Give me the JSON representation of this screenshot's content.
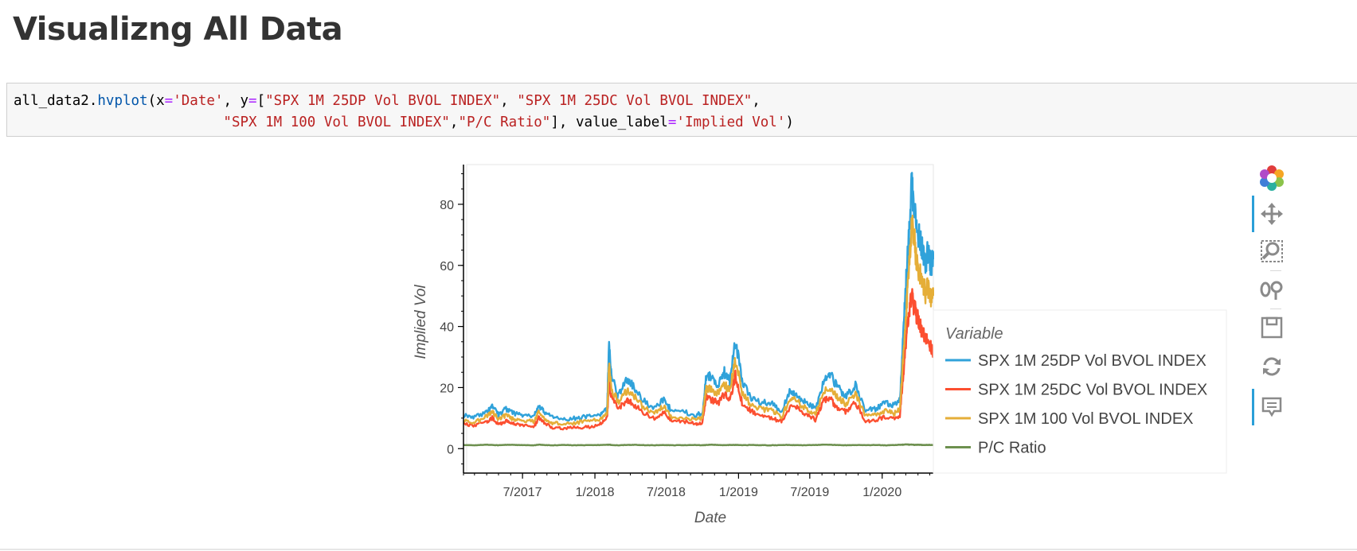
{
  "page": {
    "heading": "Visualizng All Data"
  },
  "code": {
    "line1": [
      {
        "t": "all_data2",
        "c": "var"
      },
      {
        "t": ".",
        "c": "var"
      },
      {
        "t": "hvplot",
        "c": "attr"
      },
      {
        "t": "(x",
        "c": "var"
      },
      {
        "t": "=",
        "c": "op"
      },
      {
        "t": "'Date'",
        "c": "str"
      },
      {
        "t": ", y",
        "c": "var"
      },
      {
        "t": "=",
        "c": "op"
      },
      {
        "t": "[",
        "c": "var"
      },
      {
        "t": "\"SPX 1M 25DP Vol BVOL INDEX\"",
        "c": "str"
      },
      {
        "t": ", ",
        "c": "var"
      },
      {
        "t": "\"SPX 1M 25DC Vol BVOL INDEX\"",
        "c": "str"
      },
      {
        "t": ",",
        "c": "var"
      }
    ],
    "line2_indent": "                         ",
    "line2": [
      {
        "t": "\"SPX 1M 100 Vol BVOL INDEX\"",
        "c": "str"
      },
      {
        "t": ",",
        "c": "var"
      },
      {
        "t": "\"P/C Ratio\"",
        "c": "str"
      },
      {
        "t": "], value_label",
        "c": "var"
      },
      {
        "t": "=",
        "c": "op"
      },
      {
        "t": "'Implied Vol'",
        "c": "str"
      },
      {
        "t": ")",
        "c": "var"
      }
    ]
  },
  "toolbar": {
    "tools": [
      "bokeh-logo-icon",
      "pan-icon",
      "box-zoom-icon",
      "wheel-zoom-icon",
      "save-icon",
      "reset-icon",
      "hover-icon"
    ],
    "active": [
      "pan-icon",
      "hover-icon"
    ]
  },
  "chart_data": {
    "type": "line",
    "xlabel": "Date",
    "ylabel": "Implied Vol",
    "x_range": [
      "2017-02-01",
      "2020-05-10"
    ],
    "ylim": [
      -8,
      93
    ],
    "x_ticks": [
      {
        "date": "2017-07-01",
        "label": "7/2017"
      },
      {
        "date": "2018-01-01",
        "label": "1/2018"
      },
      {
        "date": "2018-07-01",
        "label": "7/2018"
      },
      {
        "date": "2019-01-01",
        "label": "1/2019"
      },
      {
        "date": "2019-07-01",
        "label": "7/2019"
      },
      {
        "date": "2020-01-01",
        "label": "1/2020"
      }
    ],
    "y_ticks": [
      0,
      20,
      40,
      60,
      80
    ],
    "legend": {
      "title": "Variable",
      "position": "right"
    },
    "grid": false,
    "base_dates": [
      "2017-02-01",
      "2017-03-01",
      "2017-04-01",
      "2017-04-15",
      "2017-05-01",
      "2017-05-20",
      "2017-06-10",
      "2017-07-01",
      "2017-08-01",
      "2017-08-11",
      "2017-08-25",
      "2017-09-15",
      "2017-10-15",
      "2017-11-15",
      "2017-12-15",
      "2018-01-15",
      "2018-02-01",
      "2018-02-06",
      "2018-02-12",
      "2018-03-01",
      "2018-03-23",
      "2018-04-06",
      "2018-05-01",
      "2018-06-01",
      "2018-06-25",
      "2018-07-15",
      "2018-08-15",
      "2018-09-15",
      "2018-10-01",
      "2018-10-11",
      "2018-10-25",
      "2018-11-12",
      "2018-11-26",
      "2018-12-10",
      "2018-12-24",
      "2019-01-10",
      "2019-01-31",
      "2019-02-25",
      "2019-03-25",
      "2019-04-20",
      "2019-05-13",
      "2019-06-03",
      "2019-06-24",
      "2019-07-15",
      "2019-08-05",
      "2019-08-23",
      "2019-09-10",
      "2019-10-02",
      "2019-10-25",
      "2019-11-20",
      "2019-12-15",
      "2020-01-10",
      "2020-01-31",
      "2020-02-15",
      "2020-02-24",
      "2020-03-02",
      "2020-03-09",
      "2020-03-16",
      "2020-03-23",
      "2020-03-30",
      "2020-04-06",
      "2020-04-13",
      "2020-04-20",
      "2020-04-27",
      "2020-05-04",
      "2020-05-10"
    ],
    "series": [
      {
        "name": "SPX 1M 25DP Vol BVOL INDEX",
        "color": "#30a2da",
        "values": [
          11,
          10.5,
          12,
          14,
          11,
          13,
          11.5,
          11,
          11,
          14,
          12,
          10.5,
          9.5,
          10,
          10.5,
          11,
          13,
          34,
          24,
          17,
          23,
          21,
          16,
          13,
          16,
          12.5,
          12,
          11,
          11.5,
          24,
          23,
          21,
          25,
          22,
          36,
          22,
          17,
          15,
          15,
          12,
          19,
          17,
          15,
          13,
          22,
          24,
          20,
          17,
          21,
          12.5,
          13,
          15,
          14,
          16,
          38,
          55,
          70,
          86,
          80,
          72,
          68,
          66,
          61,
          65,
          60,
          62
        ]
      },
      {
        "name": "SPX 1M 25DC Vol BVOL INDEX",
        "color": "#fc4f30",
        "values": [
          8,
          7.5,
          9,
          10,
          8,
          9,
          8,
          7.5,
          7.5,
          10,
          8.5,
          7,
          6.5,
          7,
          7,
          8,
          10,
          21,
          17,
          13,
          16,
          15,
          12,
          10,
          12,
          9,
          9,
          8,
          8.5,
          17,
          16,
          15,
          18,
          16,
          24,
          15,
          12.5,
          11,
          10,
          9,
          14,
          13,
          11,
          9.5,
          16,
          16,
          13.5,
          12,
          15,
          9,
          9.5,
          10.5,
          9.5,
          11,
          25,
          36,
          45,
          50,
          46,
          43,
          40,
          38,
          36,
          35,
          33,
          31
        ]
      },
      {
        "name": "SPX 1M 100 Vol BVOL INDEX",
        "color": "#e5ae38",
        "values": [
          9,
          8.5,
          10.5,
          12,
          9.5,
          11,
          9.5,
          9,
          9,
          12,
          10,
          8.5,
          8,
          8.5,
          9,
          9.5,
          11.5,
          27,
          20,
          15,
          19,
          18,
          14,
          11.5,
          14,
          10.5,
          10,
          9.5,
          10,
          20,
          19,
          18,
          21,
          19,
          29,
          18.5,
          14.5,
          13,
          12.5,
          10.5,
          16.5,
          15,
          13,
          11,
          19,
          20,
          17,
          14.5,
          18,
          10.5,
          11,
          12.5,
          11.5,
          13,
          31,
          45,
          58,
          74,
          68,
          60,
          57,
          55,
          51,
          53,
          49,
          50
        ]
      },
      {
        "name": "P/C Ratio",
        "color": "#6d904f",
        "values": [
          1.2,
          1.1,
          1.3,
          1.2,
          1.1,
          1.25,
          1.2,
          1.15,
          1.1,
          1.3,
          1.2,
          1.1,
          1.2,
          1.1,
          1.15,
          1.2,
          1.25,
          1.3,
          1.2,
          1.1,
          1.2,
          1.25,
          1.15,
          1.1,
          1.2,
          1.1,
          1.15,
          1.2,
          1.1,
          1.2,
          1.3,
          1.2,
          1.15,
          1.2,
          1.25,
          1.1,
          1.2,
          1.15,
          1.1,
          1.2,
          1.2,
          1.1,
          1.15,
          1.2,
          1.3,
          1.25,
          1.2,
          1.1,
          1.2,
          1.15,
          1.2,
          1.1,
          1.2,
          1.25,
          1.3,
          1.4,
          1.3,
          1.35,
          1.2,
          1.3,
          1.25,
          1.2,
          1.2,
          1.25,
          1.2,
          1.2
        ]
      }
    ]
  }
}
